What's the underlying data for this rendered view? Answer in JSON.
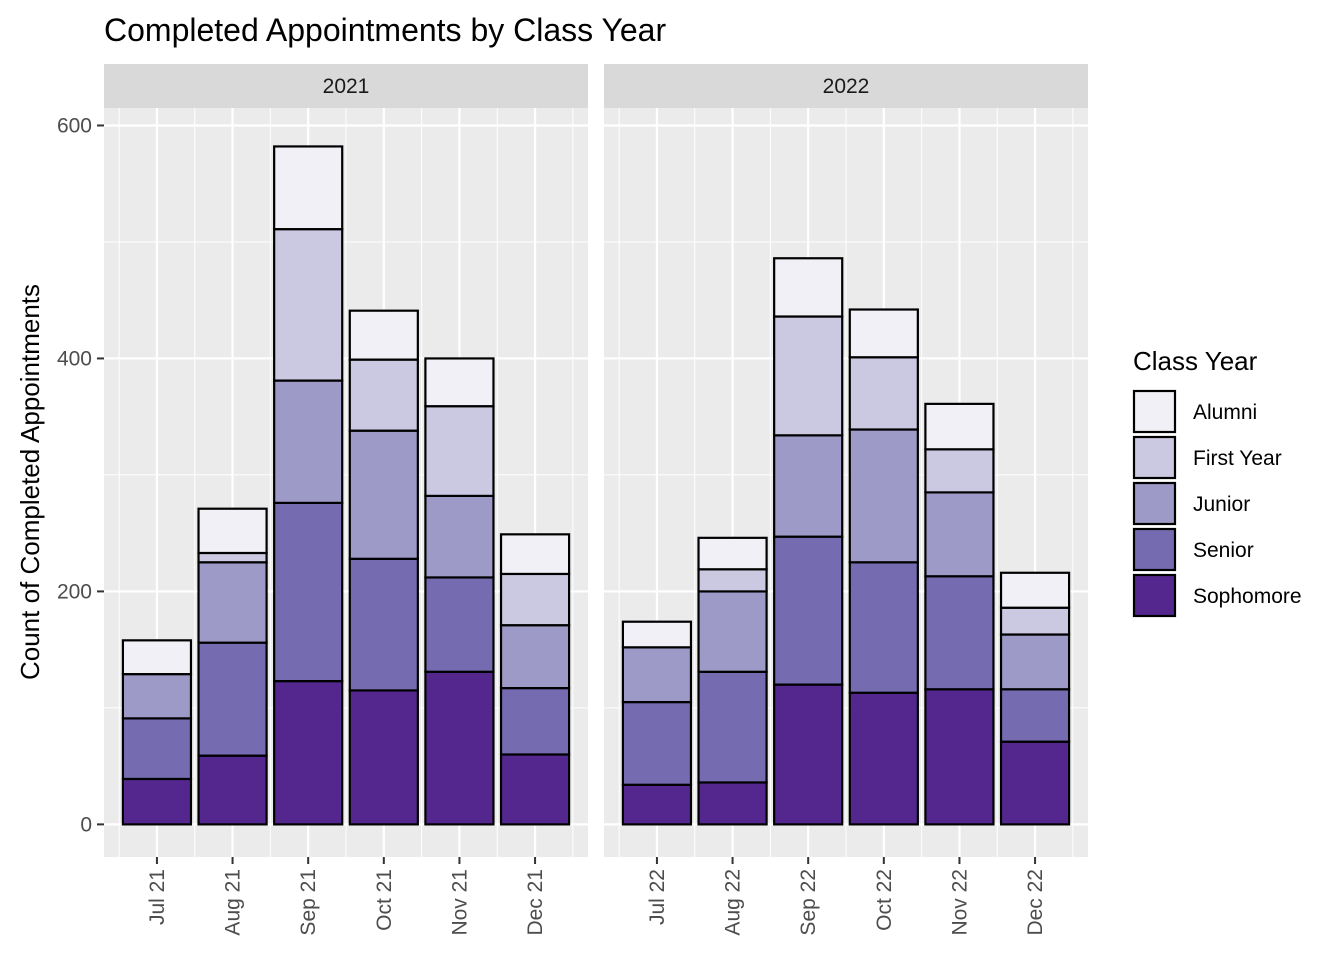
{
  "chart_data": {
    "type": "bar",
    "stacked": true,
    "title": "Completed Appointments by Class Year",
    "xlabel": "",
    "ylabel": "Count of Completed Appointments",
    "ylim": [
      -28,
      615
    ],
    "y_ticks": [
      0,
      200,
      400,
      600
    ],
    "grid": true,
    "legend": {
      "title": "Class Year",
      "placement": "right",
      "entries": [
        "Alumni",
        "First Year",
        "Junior",
        "Senior",
        "Sophomore"
      ]
    },
    "colors": {
      "Sophomore": "#54278f",
      "Senior": "#756bb1",
      "Junior": "#9e9ac8",
      "First Year": "#cbc9e2",
      "Alumni": "#f2f0f7"
    },
    "stack_order": [
      "Sophomore",
      "Senior",
      "Junior",
      "First Year",
      "Alumni"
    ],
    "panels": [
      {
        "label": "2021",
        "categories": [
          "Jul 21",
          "Aug 21",
          "Sep 21",
          "Oct 21",
          "Nov 21",
          "Dec 21"
        ],
        "series": [
          {
            "name": "Sophomore",
            "values": [
              39,
              59,
              123,
              115,
              131,
              60
            ]
          },
          {
            "name": "Senior",
            "values": [
              52,
              97,
              153,
              113,
              81,
              57
            ]
          },
          {
            "name": "Junior",
            "values": [
              38,
              69,
              105,
              110,
              70,
              54
            ]
          },
          {
            "name": "First Year",
            "values": [
              0,
              8,
              130,
              61,
              77,
              44
            ]
          },
          {
            "name": "Alumni",
            "values": [
              29,
              38,
              71,
              42,
              41,
              34
            ]
          }
        ]
      },
      {
        "label": "2022",
        "categories": [
          "Jul 22",
          "Aug 22",
          "Sep 22",
          "Oct 22",
          "Nov 22",
          "Dec 22"
        ],
        "series": [
          {
            "name": "Sophomore",
            "values": [
              34,
              36,
              120,
              113,
              116,
              71
            ]
          },
          {
            "name": "Senior",
            "values": [
              71,
              95,
              127,
              112,
              97,
              45
            ]
          },
          {
            "name": "Junior",
            "values": [
              47,
              69,
              87,
              114,
              72,
              47
            ]
          },
          {
            "name": "First Year",
            "values": [
              0,
              19,
              102,
              62,
              37,
              23
            ]
          },
          {
            "name": "Alumni",
            "values": [
              22,
              27,
              50,
              41,
              39,
              30
            ]
          }
        ]
      }
    ]
  }
}
